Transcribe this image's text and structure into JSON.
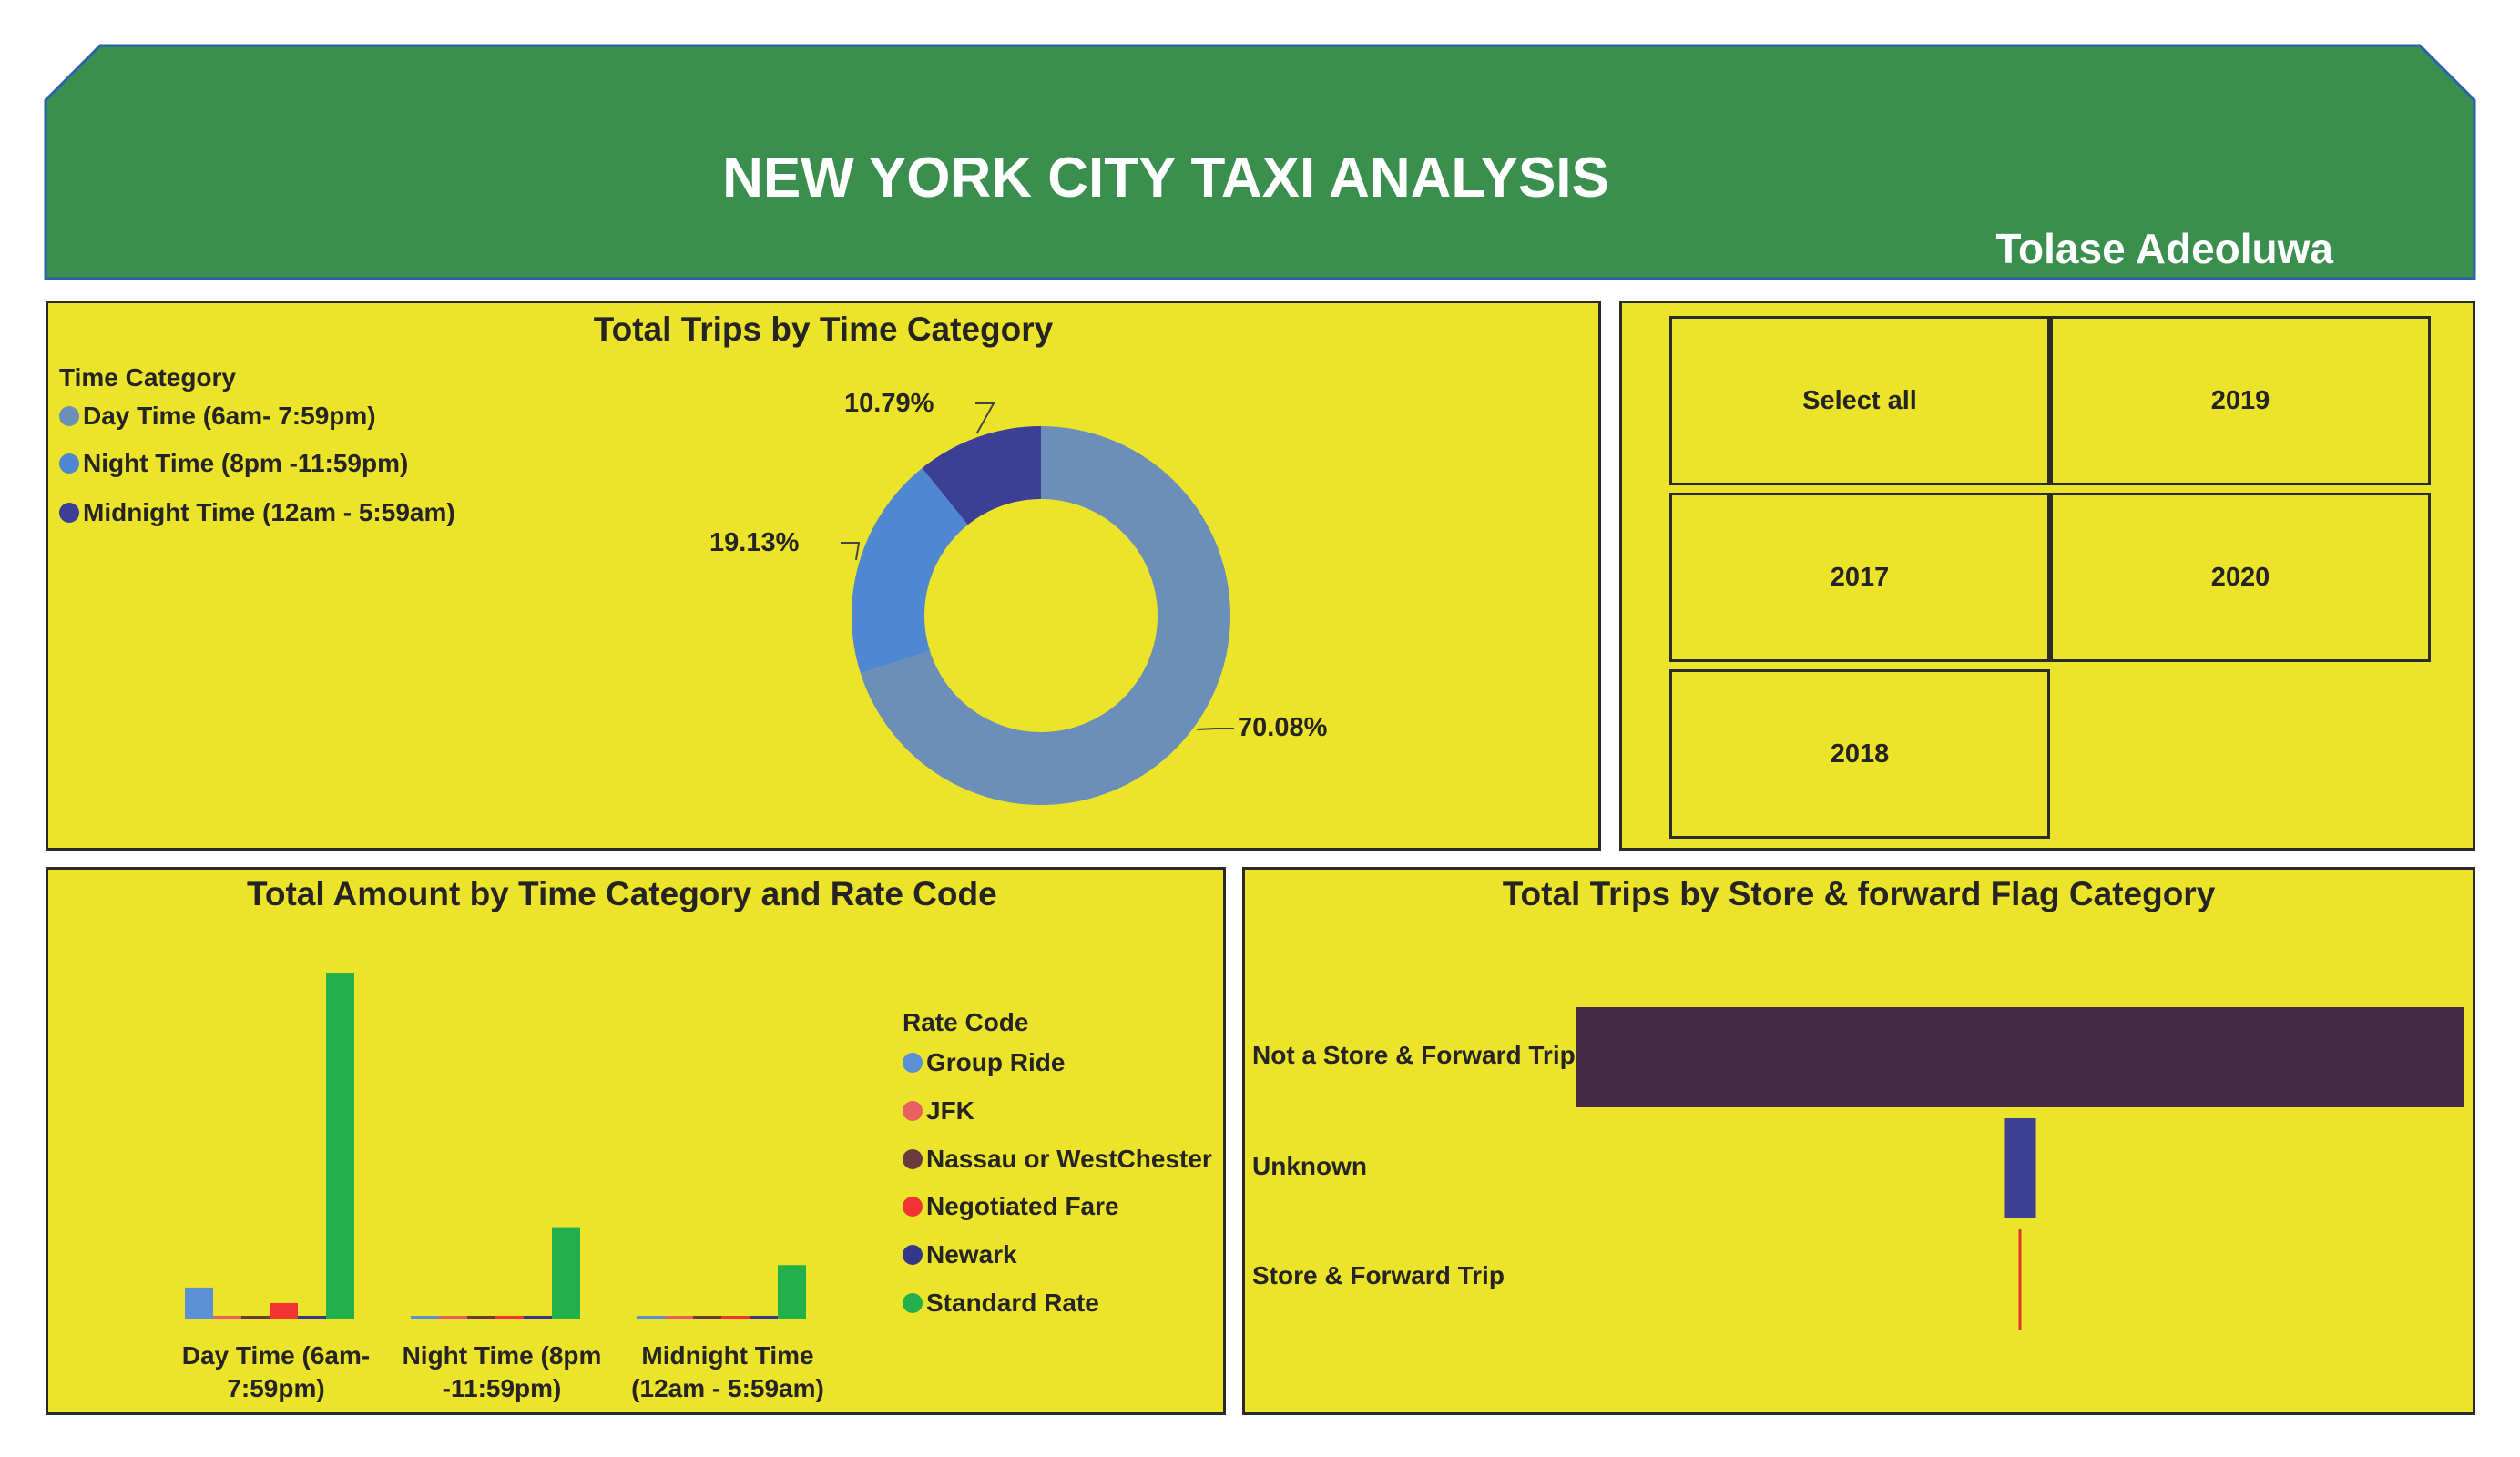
{
  "header": {
    "title": "NEW YORK CITY TAXI ANALYSIS",
    "author": "Tolase Adeoluwa"
  },
  "colors": {
    "banner": "#3a8e4e",
    "panel": "#ece42a",
    "day": "#6b8fb8",
    "night": "#4f88d0",
    "midnight": "#3b3f96",
    "group_ride": "#5b8fd6",
    "jfk": "#e86060",
    "nassau": "#6b3b3b",
    "negotiated": "#f03434",
    "newark": "#34388a",
    "standard": "#23b04a",
    "not_store": "#452a48",
    "unknown": "#3b3f96",
    "store": "#e03434"
  },
  "donut_panel": {
    "title": "Total Trips by Time Category",
    "legend_title": "Time Category",
    "legend": [
      "Day Time (6am- 7:59pm)",
      "Night Time (8pm -11:59pm)",
      "Midnight Time (12am - 5:59am)"
    ],
    "labels": [
      "70.08%",
      "19.13%",
      "10.79%"
    ]
  },
  "slicer": {
    "buttons": [
      "Select all",
      "2019",
      "2017",
      "2020",
      "2018"
    ]
  },
  "bar_panel": {
    "title": "Total Amount by Time Category and Rate Code",
    "legend_title": "Rate Code",
    "legend": [
      "Group Ride",
      "JFK",
      "Nassau or WestChester",
      "Negotiated Fare",
      "Newark",
      "Standard Rate"
    ],
    "categories": [
      [
        "Day Time (6am-",
        "7:59pm)"
      ],
      [
        "Night Time (8pm",
        "-11:59pm)"
      ],
      [
        "Midnight Time",
        "(12am - 5:59am)"
      ]
    ]
  },
  "hbar_panel": {
    "title": "Total Trips by Store & forward Flag Category",
    "categories": [
      "Not a Store & Forward Trip",
      "Unknown",
      "Store & Forward Trip"
    ]
  },
  "chart_data": [
    {
      "type": "pie",
      "title": "Total Trips by Time Category",
      "categories": [
        "Day Time (6am- 7:59pm)",
        "Night Time (8pm -11:59pm)",
        "Midnight Time (12am - 5:59am)"
      ],
      "values": [
        70.08,
        19.13,
        10.79
      ],
      "legend": "top-left"
    },
    {
      "type": "bar",
      "title": "Total Amount by Time Category and Rate Code",
      "categories": [
        "Day Time (6am- 7:59pm)",
        "Night Time (8pm -11:59pm)",
        "Midnight Time (12am - 5:59am)"
      ],
      "series": [
        {
          "name": "Group Ride",
          "values": [
            9,
            0.5,
            0.3
          ]
        },
        {
          "name": "JFK",
          "values": [
            0.8,
            0.3,
            0.2
          ]
        },
        {
          "name": "Nassau or WestChester",
          "values": [
            0.5,
            0.2,
            0.2
          ]
        },
        {
          "name": "Negotiated Fare",
          "values": [
            4.5,
            0.8,
            0.6
          ]
        },
        {
          "name": "Newark",
          "values": [
            0.6,
            0.2,
            0.2
          ]
        },
        {
          "name": "Standard Rate",
          "values": [
            100,
            26.5,
            15.5
          ]
        }
      ],
      "legend": "right",
      "grid": false
    },
    {
      "type": "bar",
      "orientation": "horizontal",
      "title": "Total Trips by Store & forward Flag Category",
      "categories": [
        "Not a Store & Forward Trip",
        "Unknown",
        "Store & Forward Trip"
      ],
      "values": [
        100,
        3.6,
        0.2
      ],
      "grid": false
    }
  ]
}
